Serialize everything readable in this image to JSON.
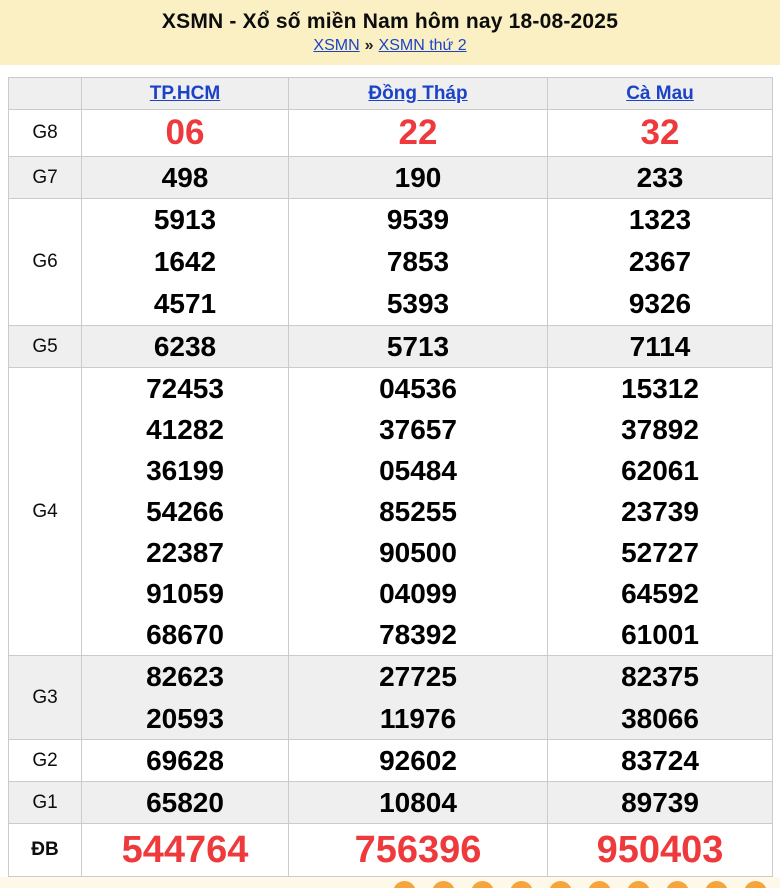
{
  "header": {
    "title": "XSMN - Xổ số miền Nam hôm nay 18-08-2025",
    "breadcrumb": {
      "home": "XSMN",
      "separator": "»",
      "current": "XSMN thứ 2"
    }
  },
  "results_table": {
    "columns": [
      "TP.HCM",
      "Đồng Tháp",
      "Cà Mau"
    ],
    "rows": [
      {
        "label": "G8",
        "highlight": true,
        "values": [
          [
            "06"
          ],
          [
            "22"
          ],
          [
            "32"
          ]
        ]
      },
      {
        "label": "G7",
        "values": [
          [
            "498"
          ],
          [
            "190"
          ],
          [
            "233"
          ]
        ]
      },
      {
        "label": "G6",
        "values": [
          [
            "5913",
            "1642",
            "4571"
          ],
          [
            "9539",
            "7853",
            "5393"
          ],
          [
            "1323",
            "2367",
            "9326"
          ]
        ]
      },
      {
        "label": "G5",
        "values": [
          [
            "6238"
          ],
          [
            "5713"
          ],
          [
            "7114"
          ]
        ]
      },
      {
        "label": "G4",
        "values": [
          [
            "72453",
            "41282",
            "36199",
            "54266",
            "22387",
            "91059",
            "68670"
          ],
          [
            "04536",
            "37657",
            "05484",
            "85255",
            "90500",
            "04099",
            "78392"
          ],
          [
            "15312",
            "37892",
            "62061",
            "23739",
            "52727",
            "64592",
            "61001"
          ]
        ]
      },
      {
        "label": "G3",
        "values": [
          [
            "82623",
            "20593"
          ],
          [
            "27725",
            "11976"
          ],
          [
            "82375",
            "38066"
          ]
        ]
      },
      {
        "label": "G2",
        "values": [
          [
            "69628"
          ],
          [
            "92602"
          ],
          [
            "83724"
          ]
        ]
      },
      {
        "label": "G1",
        "values": [
          [
            "65820"
          ],
          [
            "10804"
          ],
          [
            "89739"
          ]
        ]
      },
      {
        "label": "ĐB",
        "highlight": true,
        "values": [
          [
            "544764"
          ],
          [
            "756396"
          ],
          [
            "950403"
          ]
        ]
      }
    ]
  },
  "colors": {
    "banner_bg": "#faf0c4",
    "link_blue": "#1b43c8",
    "highlight_red": "#ee3a3c",
    "row_alt_bg": "#efefef",
    "border": "#cbcbcb",
    "ball_orange": "#f6a43b",
    "footer_strip_bg": "#fdf8e7"
  }
}
